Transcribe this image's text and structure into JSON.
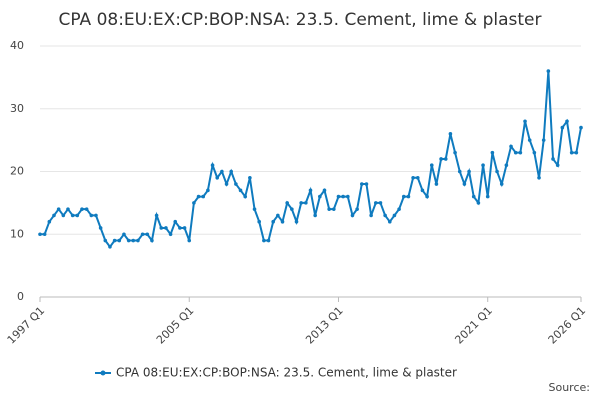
{
  "chart_data": {
    "type": "line",
    "title": "CPA 08:EU:EX:CP:BOP:NSA: 23.5. Cement, lime & plaster",
    "source": "Source:",
    "categories": [
      "1997 Q1",
      null,
      null,
      null,
      null,
      null,
      null,
      null,
      null,
      null,
      null,
      null,
      null,
      null,
      null,
      null,
      null,
      null,
      null,
      null,
      null,
      null,
      null,
      null,
      null,
      null,
      null,
      null,
      null,
      null,
      null,
      null,
      "2005 Q1",
      null,
      null,
      null,
      null,
      null,
      null,
      null,
      null,
      null,
      null,
      null,
      null,
      null,
      null,
      null,
      null,
      null,
      null,
      null,
      null,
      null,
      null,
      null,
      null,
      null,
      null,
      null,
      null,
      null,
      null,
      null,
      "2013 Q1",
      null,
      null,
      null,
      null,
      null,
      null,
      null,
      null,
      null,
      null,
      null,
      null,
      null,
      null,
      null,
      null,
      null,
      null,
      null,
      null,
      null,
      null,
      null,
      null,
      null,
      null,
      null,
      null,
      null,
      null,
      null,
      "2021 Q1",
      null,
      null,
      null,
      null,
      null,
      null,
      null,
      null,
      null,
      null,
      null,
      null,
      null,
      null,
      null,
      null,
      null,
      null,
      null,
      "2026 Q1"
    ],
    "series": [
      {
        "name": "CPA 08:EU:EX:CP:BOP:NSA: 23.5. Cement, lime & plaster",
        "color": "#0f7bbf",
        "values": [
          10,
          10,
          12,
          13,
          14,
          13,
          14,
          13,
          13,
          14,
          14,
          13,
          13,
          11,
          9,
          8,
          9,
          9,
          10,
          9,
          9,
          9,
          10,
          10,
          9,
          13,
          11,
          11,
          10,
          12,
          11,
          11,
          9,
          15,
          16,
          16,
          17,
          21,
          19,
          20,
          18,
          20,
          18,
          17,
          16,
          19,
          14,
          12,
          9,
          9,
          12,
          13,
          12,
          15,
          14,
          12,
          15,
          15,
          17,
          13,
          16,
          17,
          14,
          14,
          16,
          16,
          16,
          13,
          14,
          18,
          18,
          13,
          15,
          15,
          13,
          12,
          13,
          14,
          16,
          16,
          19,
          19,
          17,
          16,
          21,
          18,
          22,
          22,
          26,
          23,
          20,
          18,
          20,
          16,
          15,
          21,
          16,
          23,
          20,
          18,
          21,
          24,
          23,
          23,
          28,
          25,
          23,
          19,
          25,
          36,
          22,
          21,
          27,
          28,
          23,
          23,
          27
        ]
      }
    ],
    "ylim": [
      0,
      40
    ],
    "yticks": [
      0,
      10,
      20,
      30,
      40
    ],
    "grid": true
  }
}
